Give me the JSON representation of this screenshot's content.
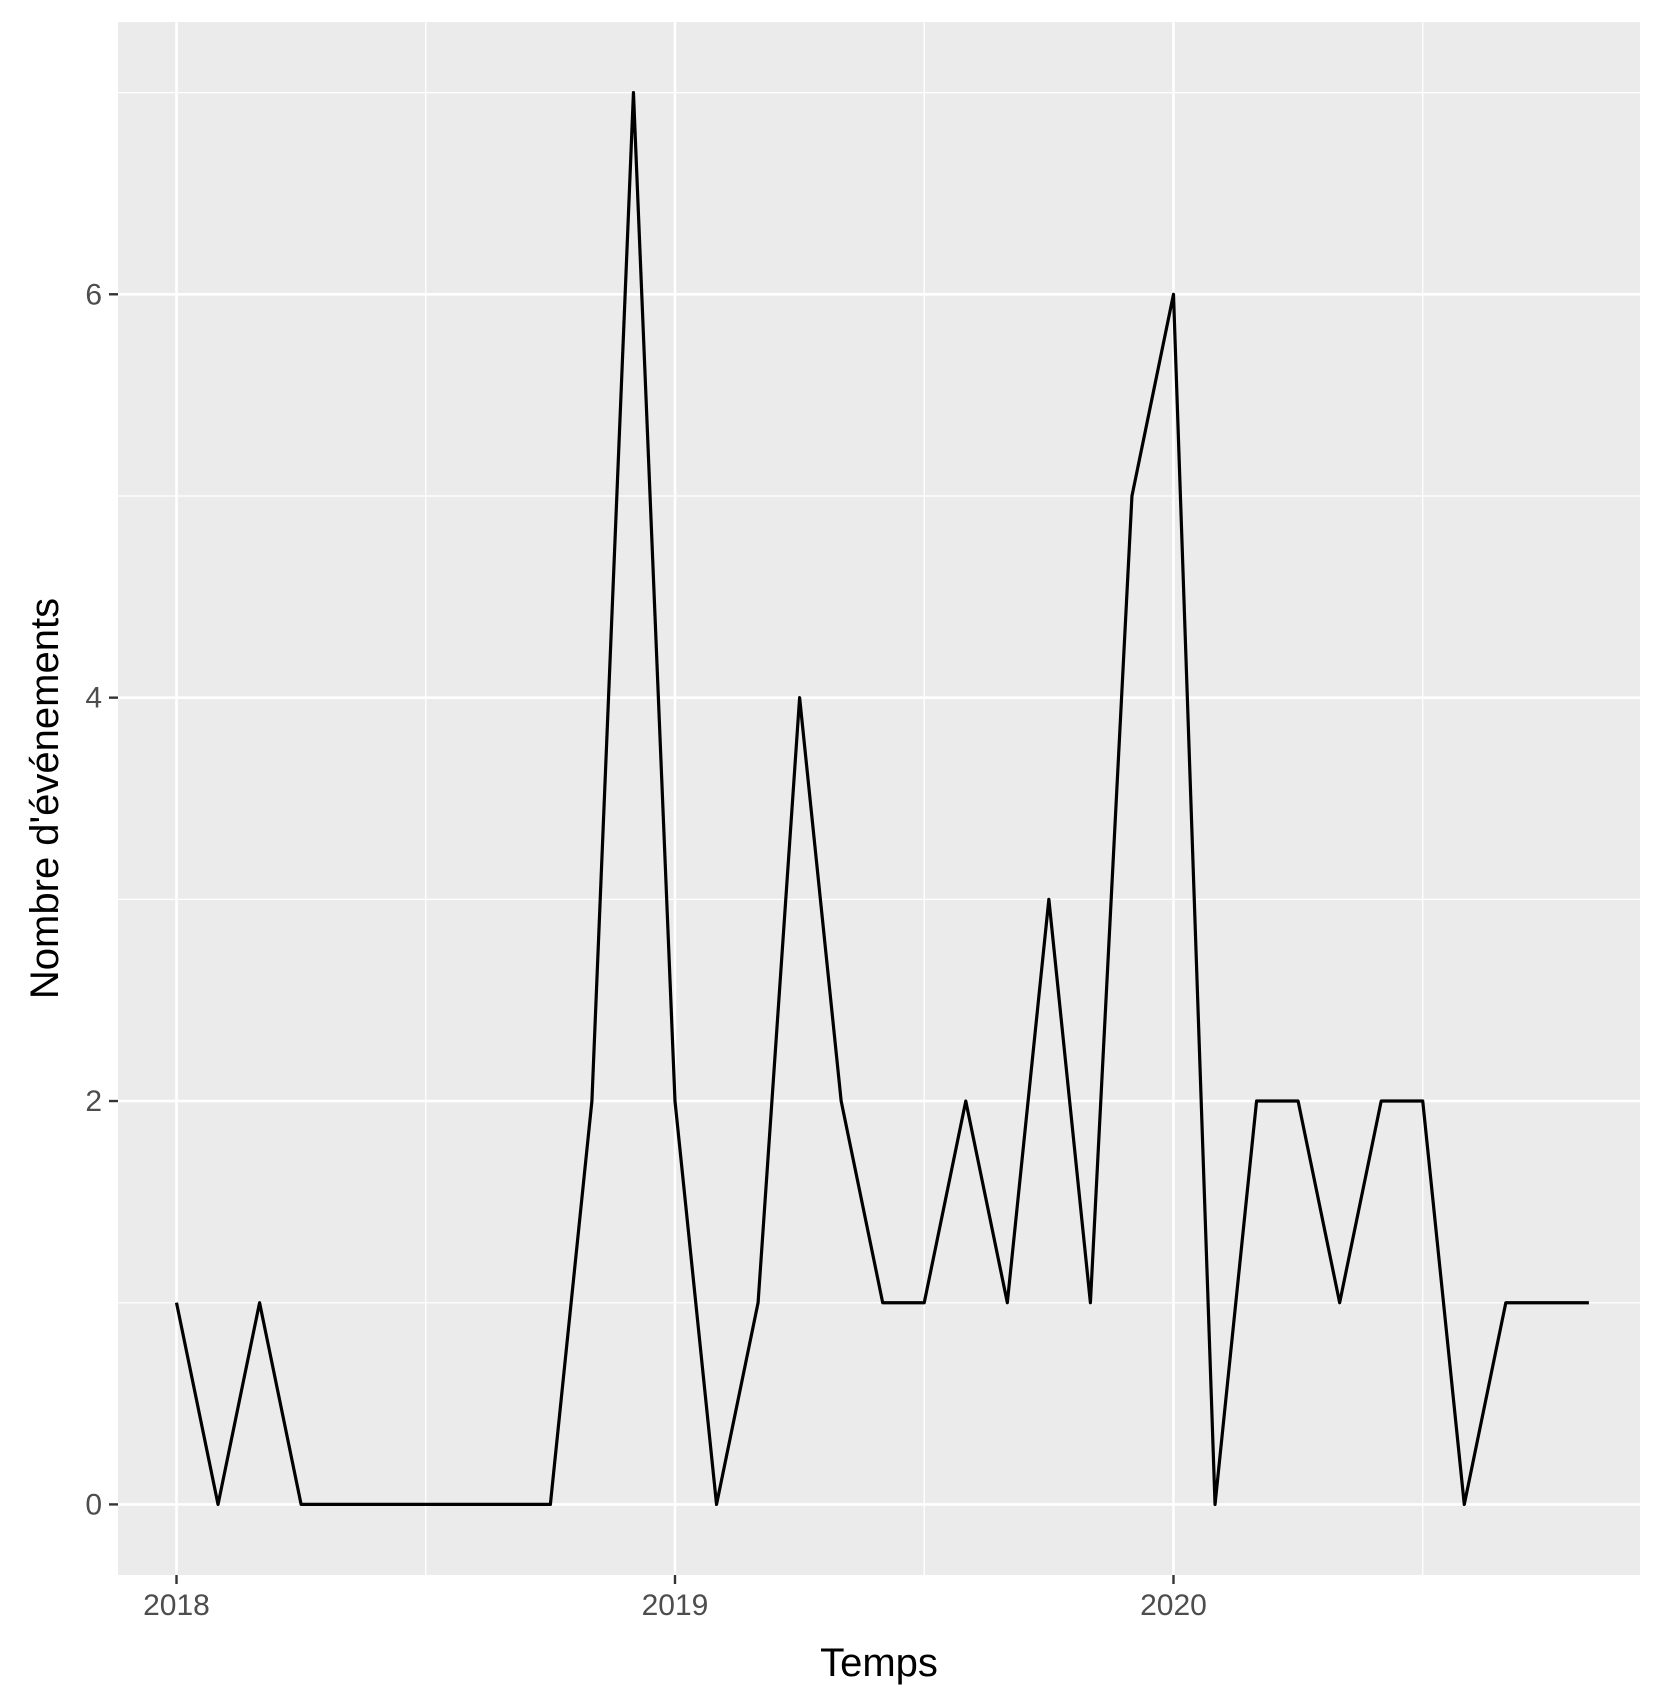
{
  "chart_data": {
    "type": "line",
    "xlabel": "Temps",
    "ylabel": "Nombre d'événements",
    "x_tick_labels": [
      "2018",
      "2019",
      "2020"
    ],
    "y_tick_labels": [
      "0",
      "2",
      "4",
      "6"
    ],
    "x_ticks": [
      2018,
      2019,
      2020
    ],
    "y_ticks": [
      0,
      2,
      4,
      6
    ],
    "xlim": [
      "2017-11-19",
      "2020-12-08"
    ],
    "ylim": [
      -0.35,
      7.35
    ],
    "grid": true,
    "legend": "none",
    "series": [
      {
        "x": [
          "2018-01",
          "2018-02",
          "2018-03",
          "2018-04",
          "2018-05",
          "2018-06",
          "2018-07",
          "2018-08",
          "2018-09",
          "2018-10",
          "2018-11",
          "2018-12",
          "2019-01",
          "2019-02",
          "2019-03",
          "2019-04",
          "2019-05",
          "2019-06",
          "2019-07",
          "2019-08",
          "2019-09",
          "2019-10",
          "2019-11",
          "2019-12",
          "2020-01",
          "2020-02",
          "2020-03",
          "2020-04",
          "2020-05",
          "2020-06",
          "2020-07",
          "2020-08",
          "2020-09",
          "2020-10",
          "2020-11"
        ],
        "values": [
          1,
          0,
          1,
          0,
          0,
          0,
          0,
          0,
          0,
          0,
          2,
          7,
          2,
          0,
          1,
          4,
          2,
          1,
          1,
          2,
          1,
          3,
          1,
          5,
          6,
          0,
          2,
          2,
          1,
          2,
          2,
          0,
          1,
          1,
          1
        ]
      }
    ],
    "colors": {
      "panel": "#ebebeb",
      "grid": "#ffffff",
      "line": "#000000",
      "tick": "#4d4d4d"
    }
  }
}
